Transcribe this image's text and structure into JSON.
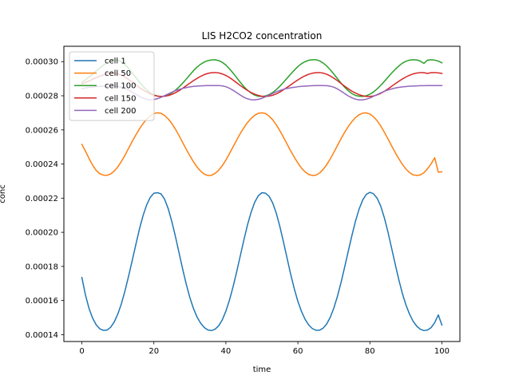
{
  "chart_data": {
    "type": "line",
    "title": "LIS H2CO2 concentration",
    "xlabel": "time",
    "ylabel": "conc",
    "xlim": [
      -5,
      105
    ],
    "ylim": [
      0.000136,
      0.000309
    ],
    "xticks": [
      0,
      20,
      40,
      60,
      80,
      100
    ],
    "xtick_labels": [
      "0",
      "20",
      "40",
      "60",
      "80",
      "100"
    ],
    "yticks": [
      0.00014,
      0.00016,
      0.00018,
      0.0002,
      0.00022,
      0.00024,
      0.00026,
      0.00028,
      0.0003
    ],
    "ytick_labels": [
      "0.00014",
      "0.00016",
      "0.00018",
      "0.00020",
      "0.00022",
      "0.00024",
      "0.00026",
      "0.00028",
      "0.00030"
    ],
    "legend_position": "top-left",
    "grid": false,
    "x": [
      0,
      1,
      2,
      3,
      4,
      5,
      6,
      7,
      8,
      9,
      10,
      11,
      12,
      13,
      14,
      15,
      16,
      17,
      18,
      19,
      20,
      21,
      22,
      23,
      24,
      25,
      26,
      27,
      28,
      29,
      30,
      31,
      32,
      33,
      34,
      35,
      36,
      37,
      38,
      39,
      40,
      41,
      42,
      43,
      44,
      45,
      46,
      47,
      48,
      49,
      50,
      51,
      52,
      53,
      54,
      55,
      56,
      57,
      58,
      59,
      60,
      61,
      62,
      63,
      64,
      65,
      66,
      67,
      68,
      69,
      70,
      71,
      72,
      73,
      74,
      75,
      76,
      77,
      78,
      79,
      80,
      81,
      82,
      83,
      84,
      85,
      86,
      87,
      88,
      89,
      90,
      91,
      92,
      93,
      94,
      95,
      96,
      97,
      98,
      99,
      100
    ],
    "series": [
      {
        "name": "cell 1",
        "color": "#1f77b4",
        "values": [
          0.0001735,
          0.0001632,
          0.0001553,
          0.0001496,
          0.0001457,
          0.0001434,
          0.0001425,
          0.0001427,
          0.0001444,
          0.0001475,
          0.0001522,
          0.0001583,
          0.0001659,
          0.0001745,
          0.0001836,
          0.0001929,
          0.000202,
          0.0002098,
          0.0002161,
          0.0002205,
          0.0002229,
          0.0002232,
          0.0002225,
          0.0002193,
          0.0002137,
          0.0002062,
          0.0001974,
          0.0001879,
          0.0001784,
          0.0001695,
          0.0001617,
          0.0001553,
          0.0001503,
          0.0001467,
          0.0001442,
          0.0001428,
          0.0001424,
          0.0001432,
          0.0001452,
          0.0001487,
          0.0001538,
          0.0001603,
          0.0001681,
          0.0001769,
          0.0001862,
          0.0001955,
          0.0002043,
          0.0002117,
          0.0002176,
          0.0002214,
          0.0002232,
          0.0002229,
          0.0002211,
          0.0002172,
          0.0002112,
          0.0002033,
          0.0001943,
          0.0001848,
          0.0001754,
          0.0001669,
          0.0001595,
          0.0001536,
          0.000149,
          0.0001457,
          0.0001436,
          0.0001426,
          0.0001426,
          0.0001438,
          0.0001463,
          0.0001502,
          0.0001557,
          0.0001626,
          0.0001707,
          0.0001797,
          0.000189,
          0.0001981,
          0.0002065,
          0.0002136,
          0.0002189,
          0.0002222,
          0.0002234,
          0.0002226,
          0.00022,
          0.0002154,
          0.0002086,
          0.0002003,
          0.000191,
          0.0001816,
          0.0001725,
          0.0001643,
          0.0001575,
          0.0001521,
          0.0001479,
          0.000145,
          0.0001432,
          0.0001424,
          0.0001427,
          0.0001441,
          0.0001471,
          0.0001516,
          0.0001456
        ]
      },
      {
        "name": "cell 50",
        "color": "#ff7f0e",
        "values": [
          0.0002515,
          0.0002475,
          0.0002432,
          0.0002393,
          0.0002362,
          0.0002343,
          0.0002335,
          0.0002334,
          0.0002342,
          0.0002359,
          0.0002384,
          0.0002416,
          0.0002453,
          0.0002493,
          0.0002533,
          0.0002571,
          0.0002606,
          0.0002637,
          0.0002663,
          0.0002683,
          0.0002696,
          0.00027,
          0.0002697,
          0.0002684,
          0.0002664,
          0.0002637,
          0.0002604,
          0.0002566,
          0.0002526,
          0.0002486,
          0.0002448,
          0.0002413,
          0.0002382,
          0.0002358,
          0.0002341,
          0.0002333,
          0.0002334,
          0.0002345,
          0.0002364,
          0.000239,
          0.0002423,
          0.0002461,
          0.0002501,
          0.0002541,
          0.0002579,
          0.0002613,
          0.0002643,
          0.0002667,
          0.0002686,
          0.0002697,
          0.00027,
          0.0002696,
          0.0002681,
          0.0002659,
          0.000263,
          0.0002595,
          0.0002557,
          0.0002517,
          0.0002477,
          0.000244,
          0.0002406,
          0.0002376,
          0.0002354,
          0.0002339,
          0.0002333,
          0.0002335,
          0.0002347,
          0.0002368,
          0.0002396,
          0.000243,
          0.0002469,
          0.0002509,
          0.0002549,
          0.0002586,
          0.000262,
          0.0002649,
          0.0002672,
          0.0002689,
          0.0002698,
          0.00027,
          0.0002693,
          0.0002677,
          0.0002654,
          0.0002623,
          0.0002587,
          0.0002548,
          0.0002508,
          0.0002469,
          0.0002432,
          0.0002399,
          0.0002371,
          0.000235,
          0.0002337,
          0.0002333,
          0.0002336,
          0.0002349,
          0.0002372,
          0.0002401,
          0.0002437,
          0.0002352,
          0.0002355
        ]
      },
      {
        "name": "cell 100",
        "color": "#2ca02c",
        "values": [
          0.000288,
          0.0002893,
          0.000291,
          0.0002928,
          0.0002946,
          0.0002963,
          0.000298,
          0.0002994,
          0.0003006,
          0.0003011,
          0.0003009,
          0.0002999,
          0.0002982,
          0.000296,
          0.0002934,
          0.0002907,
          0.000288,
          0.0002855,
          0.0002834,
          0.0002817,
          0.0002805,
          0.0002798,
          0.0002796,
          0.0002798,
          0.0002805,
          0.0002817,
          0.0002833,
          0.0002852,
          0.0002874,
          0.0002898,
          0.0002923,
          0.0002947,
          0.0002968,
          0.0002985,
          0.0002998,
          0.0003006,
          0.000301,
          0.0003011,
          0.0003006,
          0.0002996,
          0.000298,
          0.0002958,
          0.0002933,
          0.0002906,
          0.0002879,
          0.0002854,
          0.0002833,
          0.0002816,
          0.0002804,
          0.0002797,
          0.0002796,
          0.0002799,
          0.0002807,
          0.0002819,
          0.0002836,
          0.0002856,
          0.0002879,
          0.0002903,
          0.0002927,
          0.000295,
          0.0002971,
          0.0002988,
          0.0003,
          0.0003008,
          0.0003011,
          0.0003011,
          0.0003005,
          0.0002992,
          0.0002975,
          0.0002952,
          0.0002927,
          0.00029,
          0.0002874,
          0.000285,
          0.0002829,
          0.0002813,
          0.0002802,
          0.0002797,
          0.0002796,
          0.00028,
          0.0002809,
          0.0002822,
          0.000284,
          0.0002861,
          0.0002884,
          0.0002908,
          0.0002932,
          0.0002954,
          0.0002974,
          0.0002991,
          0.0003002,
          0.0003009,
          0.0003011,
          0.000301,
          0.0003003,
          0.000299,
          0.0003009,
          0.0003011,
          0.0003009,
          0.0003003,
          0.0002993
        ]
      },
      {
        "name": "cell 150",
        "color": "#d62728",
        "values": [
          0.000287,
          0.0002878,
          0.0002887,
          0.0002897,
          0.0002906,
          0.0002915,
          0.0002922,
          0.0002928,
          0.0002931,
          0.0002932,
          0.0002928,
          0.000292,
          0.0002909,
          0.0002895,
          0.000288,
          0.0002864,
          0.0002848,
          0.0002834,
          0.0002822,
          0.0002811,
          0.0002803,
          0.0002798,
          0.0002796,
          0.0002797,
          0.0002801,
          0.0002808,
          0.0002818,
          0.000283,
          0.0002844,
          0.0002859,
          0.0002874,
          0.0002889,
          0.0002902,
          0.0002914,
          0.0002924,
          0.0002931,
          0.0002935,
          0.0002936,
          0.0002934,
          0.0002928,
          0.0002919,
          0.0002907,
          0.0002892,
          0.0002876,
          0.000286,
          0.0002845,
          0.0002831,
          0.0002819,
          0.0002809,
          0.0002802,
          0.0002797,
          0.0002796,
          0.0002798,
          0.0002803,
          0.0002811,
          0.0002822,
          0.0002835,
          0.0002849,
          0.0002864,
          0.0002879,
          0.0002893,
          0.0002906,
          0.0002917,
          0.0002926,
          0.0002932,
          0.0002935,
          0.0002936,
          0.0002933,
          0.0002926,
          0.0002916,
          0.0002903,
          0.0002888,
          0.0002872,
          0.0002856,
          0.0002841,
          0.0002827,
          0.0002816,
          0.0002806,
          0.00028,
          0.0002796,
          0.0002796,
          0.0002799,
          0.0002805,
          0.0002814,
          0.0002826,
          0.000284,
          0.0002855,
          0.000287,
          0.0002884,
          0.0002898,
          0.000291,
          0.000292,
          0.0002928,
          0.0002933,
          0.0002936,
          0.0002935,
          0.0002931,
          0.0002935,
          0.0002936,
          0.0002934,
          0.0002931
        ]
      },
      {
        "name": "cell 200",
        "color": "#9467bd",
        "values": [
          0.0002843,
          0.0002846,
          0.0002849,
          0.0002851,
          0.0002853,
          0.0002855,
          0.0002856,
          0.0002857,
          0.0002857,
          0.0002856,
          0.0002854,
          0.000285,
          0.0002843,
          0.0002834,
          0.0002822,
          0.0002809,
          0.0002796,
          0.0002786,
          0.0002779,
          0.0002776,
          0.0002778,
          0.0002783,
          0.0002791,
          0.0002801,
          0.0002811,
          0.0002821,
          0.000283,
          0.0002837,
          0.0002843,
          0.0002848,
          0.0002852,
          0.0002855,
          0.0002857,
          0.0002858,
          0.0002859,
          0.000286,
          0.000286,
          0.000286,
          0.000286,
          0.0002858,
          0.0002853,
          0.0002844,
          0.0002832,
          0.0002818,
          0.0002804,
          0.0002791,
          0.0002782,
          0.0002777,
          0.0002776,
          0.0002779,
          0.0002785,
          0.0002794,
          0.0002804,
          0.0002814,
          0.0002823,
          0.0002831,
          0.0002838,
          0.0002843,
          0.0002847,
          0.000285,
          0.0002853,
          0.0002855,
          0.0002857,
          0.0002858,
          0.0002859,
          0.000286,
          0.000286,
          0.000286,
          0.0002859,
          0.0002856,
          0.000285,
          0.000284,
          0.0002827,
          0.0002813,
          0.0002799,
          0.0002788,
          0.000278,
          0.0002776,
          0.0002776,
          0.000278,
          0.0002787,
          0.0002797,
          0.0002807,
          0.0002817,
          0.0002826,
          0.0002834,
          0.000284,
          0.0002845,
          0.0002849,
          0.0002852,
          0.0002854,
          0.0002856,
          0.0002857,
          0.0002858,
          0.0002859,
          0.0002859,
          0.000286,
          0.000286,
          0.000286,
          0.000286,
          0.000286
        ]
      }
    ]
  }
}
